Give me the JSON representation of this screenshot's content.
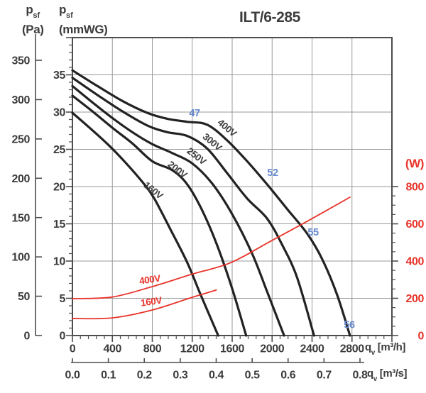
{
  "title": "ILT/6-285",
  "axes": {
    "pa": {
      "symbol": "p",
      "sub": "sf",
      "unit": "(Pa)"
    },
    "mmwg": {
      "symbol": "p",
      "sub": "sf",
      "unit": "(mmWG)"
    },
    "watts": {
      "unit": "(W)"
    },
    "flow_h": {
      "symbol": "q",
      "sub": "v",
      "unit": "[m³/h]"
    },
    "flow_s": {
      "symbol": "q",
      "sub": "v",
      "unit": "[m³/s]"
    }
  },
  "colors": {
    "pressure_curve": "#222222",
    "power_curve": "#e8332a",
    "sound_label": "#6688cc",
    "curve_label_dark": "#3d3d3d",
    "grid": "#999999",
    "frame": "#4d4d4d",
    "text": "#3c3c3c"
  },
  "chart_data": {
    "type": "line",
    "title": "ILT/6-285",
    "x_axis": {
      "label": "qv [m³/h]",
      "range": [
        0,
        3200
      ],
      "gridline_step": 400,
      "minor_tick_step": 80,
      "ticks": [
        0,
        400,
        800,
        1200,
        1600,
        2000,
        2400,
        2800
      ]
    },
    "x_axis_secondary": {
      "label": "qv [m³/s]",
      "range": [
        0,
        0.8
      ],
      "ticks": [
        "0.0",
        "0.1",
        "0.2",
        "0.3",
        "0.4",
        "0.5",
        "0.6",
        "0.7",
        "0.8"
      ]
    },
    "y_axis_left": {
      "label": "psf (mmWG)",
      "range": [
        0,
        40
      ],
      "gridline_step": 5,
      "minor_tick_step": 1,
      "ticks": [
        0,
        5,
        10,
        15,
        20,
        25,
        30,
        35
      ]
    },
    "y_axis_left_outer": {
      "label": "psf (Pa)",
      "range": [
        0,
        350
      ],
      "ticks": [
        0,
        50,
        100,
        150,
        200,
        250,
        300,
        350
      ]
    },
    "y_axis_right": {
      "label": "(W)",
      "visible_range": [
        0,
        800
      ],
      "minor_tick_step": 50,
      "ticks": [
        0,
        200,
        400,
        600,
        800
      ]
    },
    "pressure_curves": [
      {
        "name": "400V",
        "y_unit": "mmWG",
        "points": [
          [
            0,
            35.6
          ],
          [
            250,
            33.5
          ],
          [
            500,
            31.5
          ],
          [
            750,
            29.9
          ],
          [
            950,
            29.1
          ],
          [
            1150,
            28.7
          ],
          [
            1350,
            28.3
          ],
          [
            1550,
            26.2
          ],
          [
            1750,
            23.4
          ],
          [
            1950,
            20.3
          ],
          [
            2150,
            17.0
          ],
          [
            2350,
            13.7
          ],
          [
            2500,
            10.3
          ],
          [
            2650,
            5.5
          ],
          [
            2780,
            0
          ]
        ],
        "label": {
          "text": "400V",
          "q": 1550,
          "v": 27.9,
          "rot": 40
        }
      },
      {
        "name": "300V",
        "y_unit": "mmWG",
        "points": [
          [
            0,
            34.6
          ],
          [
            250,
            32.3
          ],
          [
            500,
            30.1
          ],
          [
            750,
            28.2
          ],
          [
            950,
            27.3
          ],
          [
            1150,
            26.8
          ],
          [
            1350,
            25.1
          ],
          [
            1550,
            21.8
          ],
          [
            1750,
            18.4
          ],
          [
            1950,
            15.7
          ],
          [
            2100,
            12.2
          ],
          [
            2250,
            7.8
          ],
          [
            2420,
            0
          ]
        ],
        "label": {
          "text": "300V",
          "q": 1401,
          "v": 26.0,
          "rot": 40
        }
      },
      {
        "name": "250V",
        "y_unit": "mmWG",
        "points": [
          [
            0,
            33.5
          ],
          [
            200,
            31.3
          ],
          [
            400,
            29.2
          ],
          [
            600,
            27.3
          ],
          [
            800,
            25.7
          ],
          [
            1000,
            24.5
          ],
          [
            1200,
            23.1
          ],
          [
            1400,
            20.4
          ],
          [
            1600,
            16.3
          ],
          [
            1800,
            11.0
          ],
          [
            1950,
            5.9
          ],
          [
            2120,
            0
          ]
        ],
        "label": {
          "text": "250V",
          "q": 1244,
          "v": 24.1,
          "rot": 38
        }
      },
      {
        "name": "200V",
        "y_unit": "mmWG",
        "points": [
          [
            0,
            32.2
          ],
          [
            200,
            30.1
          ],
          [
            400,
            27.9
          ],
          [
            600,
            25.8
          ],
          [
            800,
            23.4
          ],
          [
            1000,
            22.2
          ],
          [
            1150,
            20.3
          ],
          [
            1300,
            16.8
          ],
          [
            1450,
            12.1
          ],
          [
            1600,
            6.3
          ],
          [
            1740,
            0
          ]
        ],
        "label": {
          "text": "200V",
          "q": 1052,
          "v": 22.3,
          "rot": 38
        }
      },
      {
        "name": "160V",
        "y_unit": "mmWG",
        "points": [
          [
            0,
            29.9
          ],
          [
            180,
            27.8
          ],
          [
            360,
            25.6
          ],
          [
            540,
            23.1
          ],
          [
            720,
            20.3
          ],
          [
            820,
            18.4
          ],
          [
            980,
            14.3
          ],
          [
            1150,
            9.8
          ],
          [
            1290,
            5.3
          ],
          [
            1460,
            0
          ]
        ],
        "label": {
          "text": "160V",
          "q": 811,
          "v": 19.5,
          "rot": 38
        }
      }
    ],
    "power_curves": [
      {
        "name": "400V",
        "y_unit": "W",
        "points": [
          [
            0,
            198
          ],
          [
            400,
            207
          ],
          [
            800,
            263
          ],
          [
            1200,
            330
          ],
          [
            1580,
            390
          ],
          [
            1980,
            505
          ],
          [
            2350,
            613
          ],
          [
            2780,
            743
          ]
        ],
        "label": {
          "text": "400V",
          "q": 775,
          "v": 301,
          "rot": -8
        }
      },
      {
        "name": "160V",
        "y_unit": "W",
        "points": [
          [
            0,
            91
          ],
          [
            400,
            95
          ],
          [
            800,
            137
          ],
          [
            1180,
            202
          ],
          [
            1440,
            244
          ]
        ],
        "label": {
          "text": "160V",
          "q": 789,
          "v": 183,
          "rot": -8
        }
      }
    ],
    "sound_levels_db": [
      {
        "text": "47",
        "q": 1223,
        "v": 29.9
      },
      {
        "text": "52",
        "q": 2005,
        "v": 21.9
      },
      {
        "text": "55",
        "q": 2411,
        "v": 13.9
      },
      {
        "text": "56",
        "q": 2773,
        "v": 1.5
      }
    ]
  }
}
